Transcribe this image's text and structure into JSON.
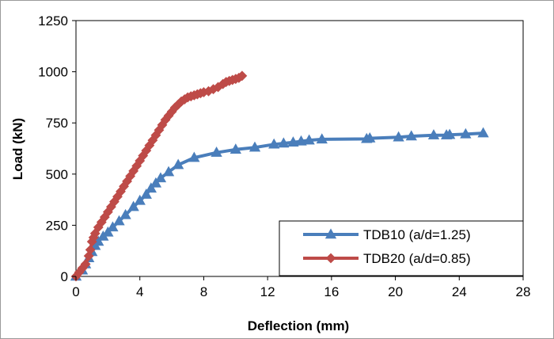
{
  "chart_data": {
    "type": "line",
    "title": "",
    "xlabel": "Deflection (mm)",
    "ylabel": "Load (kN)",
    "xlim": [
      0,
      28
    ],
    "ylim": [
      0,
      1250
    ],
    "xticks": [
      0,
      4,
      8,
      12,
      16,
      20,
      24,
      28
    ],
    "yticks": [
      0,
      250,
      500,
      750,
      1000,
      1250
    ],
    "grid": false,
    "legend_position": "bottom-right",
    "series": [
      {
        "name": "TDB10 (a/d=1.25)",
        "color": "#4a7ebb",
        "marker": "triangle",
        "x": [
          0.0,
          0.4,
          0.6,
          0.8,
          1.0,
          1.2,
          1.4,
          1.7,
          2.0,
          2.3,
          2.7,
          3.1,
          3.6,
          4.0,
          4.4,
          4.7,
          5.0,
          5.3,
          5.8,
          6.4,
          7.4,
          8.8,
          10.0,
          11.2,
          12.4,
          13.0,
          13.6,
          14.1,
          14.6,
          15.4,
          18.2,
          18.4,
          20.2,
          21.0,
          22.4,
          23.2,
          23.4,
          24.4,
          25.5
        ],
        "y": [
          0,
          30,
          60,
          90,
          120,
          150,
          170,
          195,
          215,
          240,
          270,
          300,
          340,
          370,
          400,
          430,
          455,
          480,
          510,
          545,
          580,
          605,
          620,
          630,
          645,
          650,
          655,
          660,
          665,
          670,
          672,
          675,
          680,
          685,
          690,
          690,
          692,
          695,
          700
        ]
      },
      {
        "name": "TDB20 (a/d=0.85)",
        "color": "#be4b48",
        "marker": "diamond",
        "x": [
          0.0,
          0.2,
          0.4,
          0.6,
          0.8,
          0.9,
          1.0,
          1.1,
          1.2,
          1.4,
          1.6,
          1.8,
          2.0,
          2.2,
          2.4,
          2.6,
          2.8,
          3.0,
          3.2,
          3.4,
          3.6,
          3.8,
          4.0,
          4.2,
          4.4,
          4.6,
          4.8,
          5.0,
          5.2,
          5.4,
          5.6,
          5.8,
          6.0,
          6.2,
          6.4,
          6.6,
          6.8,
          7.0,
          7.2,
          7.4,
          7.6,
          7.8,
          8.0,
          8.3,
          8.6,
          8.9,
          9.2,
          9.4,
          9.6,
          9.8,
          10.0,
          10.2,
          10.4
        ],
        "y": [
          0,
          20,
          40,
          60,
          100,
          130,
          170,
          190,
          210,
          240,
          265,
          290,
          315,
          340,
          365,
          390,
          415,
          440,
          465,
          490,
          515,
          540,
          565,
          590,
          615,
          640,
          665,
          690,
          715,
          740,
          765,
          785,
          805,
          825,
          840,
          855,
          865,
          875,
          880,
          885,
          890,
          895,
          900,
          905,
          915,
          925,
          940,
          950,
          955,
          960,
          965,
          970,
          980
        ]
      }
    ]
  }
}
